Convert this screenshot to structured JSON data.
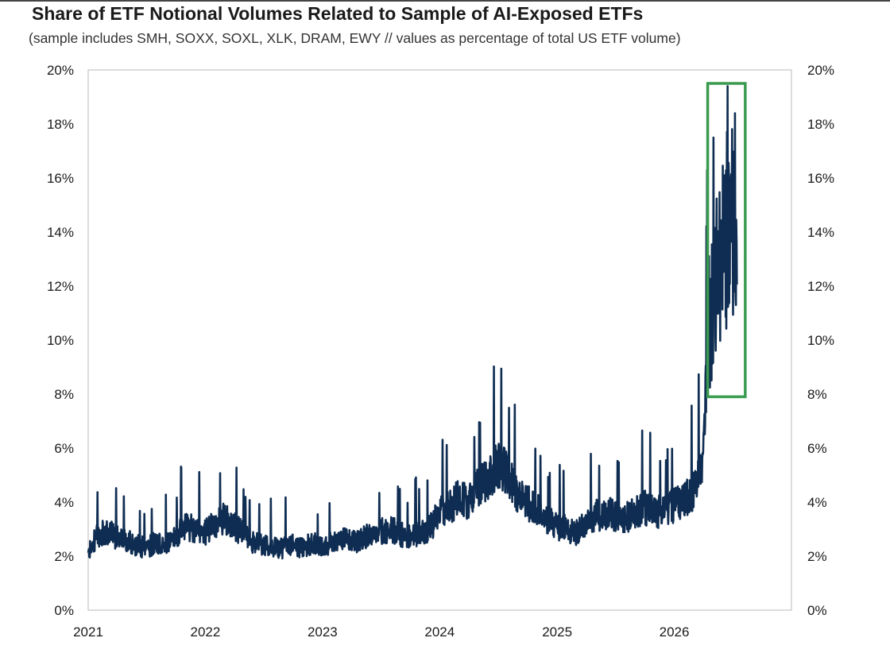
{
  "chart_data": {
    "type": "line",
    "title": "Share of ETF Notional Volumes Related to Sample of AI-Exposed ETFs",
    "subtitle": "(sample includes SMH, SOXX, SOXL, XLK, DRAM, EWY // values as percentage of total US ETF volume)",
    "xlabel": "",
    "ylabel": "",
    "x_tick_labels": [
      "2021",
      "2022",
      "2023",
      "2024",
      "2025",
      "2026"
    ],
    "y_tick_labels_left": [
      "0%",
      "2%",
      "4%",
      "6%",
      "8%",
      "10%",
      "12%",
      "14%",
      "16%",
      "18%",
      "20%"
    ],
    "y_tick_labels_right": [
      "0%",
      "2%",
      "4%",
      "6%",
      "8%",
      "10%",
      "12%",
      "14%",
      "16%",
      "18%",
      "20%"
    ],
    "xlim": [
      "2021-01-01",
      "2027-01-01"
    ],
    "ylim": [
      0,
      20
    ],
    "y_unit": "%",
    "grid": false,
    "legend": "none",
    "line_color": "#0f2d52",
    "highlight_color": "#3a9a4e",
    "highlight_box": {
      "x_range": [
        "2026-04-15",
        "2026-08-10"
      ],
      "y_range": [
        7.9,
        19.5
      ]
    },
    "series": [
      {
        "x": [
          "2021-01-01",
          "2021-02-01",
          "2021-03-01",
          "2021-04-01",
          "2021-05-01",
          "2021-06-01",
          "2021-07-01",
          "2021-08-01",
          "2021-09-01",
          "2021-10-01",
          "2021-11-01",
          "2021-12-01",
          "2022-01-01",
          "2022-02-01",
          "2022-03-01",
          "2022-04-01",
          "2022-05-01",
          "2022-06-01",
          "2022-07-01",
          "2022-08-01",
          "2022-09-01",
          "2022-10-01",
          "2022-11-01",
          "2022-12-01",
          "2023-01-01",
          "2023-02-01",
          "2023-03-01",
          "2023-04-01",
          "2023-05-01",
          "2023-06-01",
          "2023-07-01",
          "2023-08-01",
          "2023-09-01",
          "2023-10-01",
          "2023-11-01",
          "2023-12-01",
          "2024-01-01",
          "2024-02-01",
          "2024-03-01",
          "2024-04-01",
          "2024-05-01",
          "2024-06-01",
          "2024-07-01",
          "2024-08-01",
          "2024-09-01",
          "2024-10-01",
          "2024-11-01",
          "2024-12-01",
          "2025-01-01",
          "2025-02-01",
          "2025-03-01",
          "2025-04-01",
          "2025-05-01",
          "2025-06-01",
          "2025-07-01",
          "2025-08-01",
          "2025-09-01",
          "2025-10-01",
          "2025-11-01",
          "2025-12-01",
          "2026-01-01",
          "2026-02-01",
          "2026-03-01",
          "2026-03-15",
          "2026-04-01",
          "2026-04-15",
          "2026-05-01",
          "2026-05-15",
          "2026-06-01",
          "2026-06-15",
          "2026-07-01",
          "2026-07-15"
        ],
        "y": [
          2.1,
          2.8,
          2.9,
          2.7,
          2.6,
          2.4,
          2.3,
          2.5,
          2.4,
          2.8,
          3.1,
          3.0,
          2.9,
          3.2,
          3.4,
          3.1,
          2.8,
          2.5,
          2.4,
          2.3,
          2.3,
          2.4,
          2.3,
          2.5,
          2.3,
          2.6,
          2.7,
          2.5,
          2.6,
          2.8,
          2.9,
          3.0,
          2.8,
          2.7,
          2.8,
          3.0,
          3.6,
          3.8,
          4.2,
          4.0,
          4.6,
          4.9,
          5.4,
          5.0,
          4.2,
          4.0,
          3.7,
          3.4,
          3.1,
          3.0,
          2.9,
          3.3,
          3.5,
          3.6,
          3.5,
          3.4,
          3.6,
          3.8,
          3.6,
          3.7,
          3.9,
          4.1,
          4.4,
          4.9,
          5.8,
          10.0,
          11.8,
          12.2,
          13.3,
          14.2,
          14.6,
          14.8
        ]
      }
    ]
  }
}
